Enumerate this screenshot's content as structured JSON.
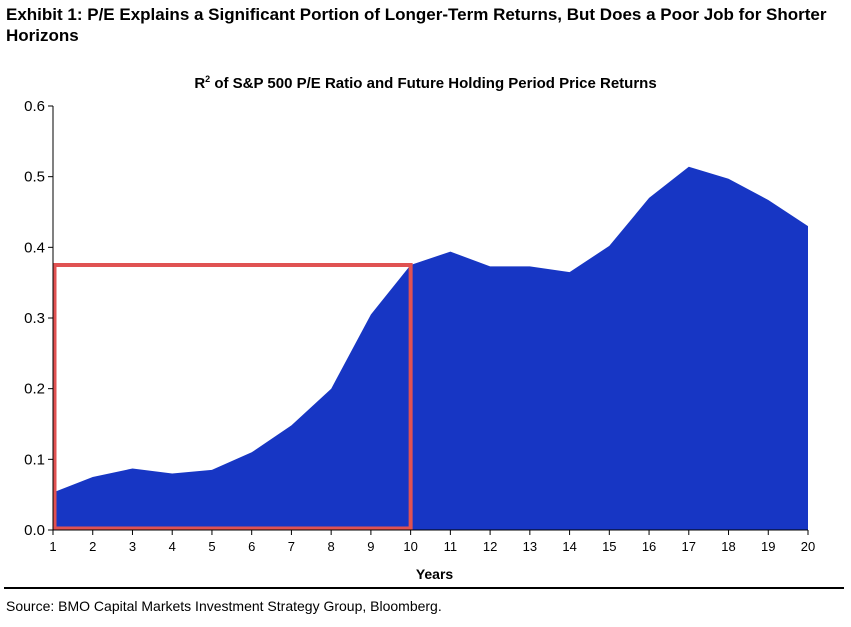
{
  "exhibit_title": "Exhibit 1: P/E Explains a Significant Portion of Longer-Term Returns, But Does a Poor Job for Shorter Horizons",
  "source": "Source: BMO Capital Markets Investment Strategy Group, Bloomberg.",
  "chart_data": {
    "type": "area",
    "title_prefix": "R",
    "title_superscript": "2",
    "title_rest": " of S&P 500 P/E Ratio and Future Holding Period Price Returns",
    "xlabel": "Years",
    "ylabel": "",
    "x": [
      1,
      2,
      3,
      4,
      5,
      6,
      7,
      8,
      9,
      10,
      11,
      12,
      13,
      14,
      15,
      16,
      17,
      18,
      19,
      20
    ],
    "series": [
      {
        "values": [
          0.053,
          0.075,
          0.087,
          0.08,
          0.085,
          0.11,
          0.148,
          0.2,
          0.305,
          0.375,
          0.394,
          0.373,
          0.373,
          0.365,
          0.402,
          0.47,
          0.514,
          0.497,
          0.467,
          0.43
        ]
      }
    ],
    "ylim": [
      0,
      0.6
    ],
    "yticks": [
      "0.0",
      "0.1",
      "0.2",
      "0.3",
      "0.4",
      "0.5",
      "0.6"
    ],
    "xticks": [
      "1",
      "2",
      "3",
      "4",
      "5",
      "6",
      "7",
      "8",
      "9",
      "10",
      "11",
      "12",
      "13",
      "14",
      "15",
      "16",
      "17",
      "18",
      "19",
      "20"
    ],
    "grid": false,
    "legend": "none",
    "area_color": "#1736c4",
    "highlight": {
      "x_range": [
        1,
        10
      ],
      "y_range": [
        0,
        0.375
      ],
      "color": "#e05252"
    }
  }
}
